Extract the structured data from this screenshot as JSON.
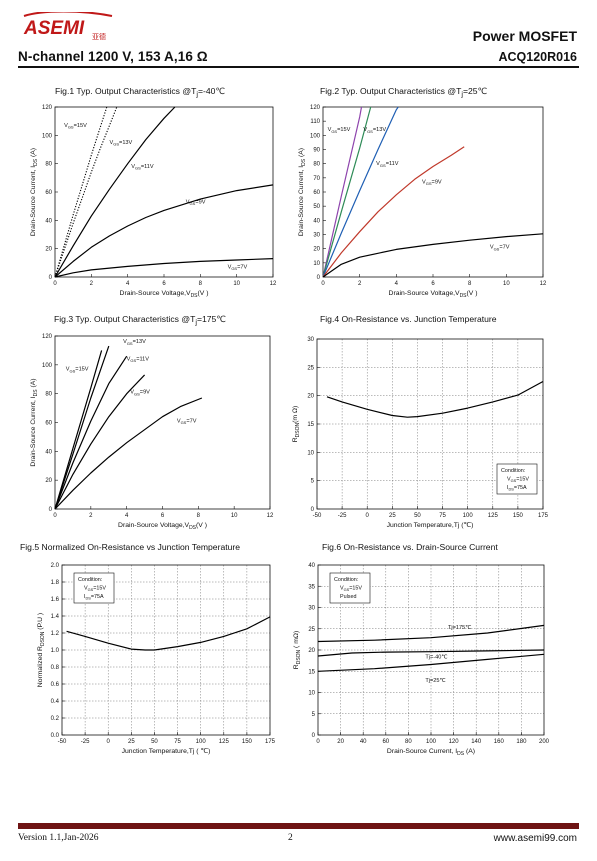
{
  "header": {
    "logo_text": "ASEMI",
    "logo_subtext": "亚德",
    "doc_type": "Power MOSFET",
    "part_number": "ACQ120R016",
    "spec_line": "N-channel  1200 V, 153 A,16 Ω"
  },
  "footer": {
    "version": "Version 1.1,Jan-2026",
    "page": "2",
    "website": "www.asemi99.com"
  },
  "figures": [
    {
      "title_html": "Fig.1 Typ. Output Characteristics @T<sub>j</sub>=-40℃"
    },
    {
      "title_html": "Fig.2 Typ. Output Characteristics @T<sub>j</sub>=25℃"
    },
    {
      "title_html": "Fig.3 Typ. Output Characteristics @T<sub>j</sub>=175℃"
    },
    {
      "title_html": "Fig.4 On-Resistance vs. Junction Temperature"
    },
    {
      "title_html": "Fig.5 Normalized On-Resistance vs Junction Temperature"
    },
    {
      "title_html": "Fig.6 On-Resistance vs. Drain-Source Current"
    }
  ],
  "chart_data": [
    {
      "type": "line",
      "title": "Fig.1 Typ. Output Characteristics @Tj=-40℃",
      "xlabel": "Drain-Source Voltage,V_DS(V )",
      "ylabel": "Drain-Source Current, I_DS (A)",
      "xlim": [
        0,
        12
      ],
      "ylim": [
        0,
        120
      ],
      "xticks": [
        0,
        2,
        4,
        6,
        8,
        10,
        12
      ],
      "yticks": [
        0,
        20,
        40,
        60,
        80,
        100,
        120
      ],
      "grid": false,
      "series": [
        {
          "name": "V_GS=15V",
          "style": "dotted",
          "color": "#000000",
          "points": [
            [
              0,
              0
            ],
            [
              0.5,
              22
            ],
            [
              1,
              44
            ],
            [
              1.5,
              65
            ],
            [
              2,
              86
            ],
            [
              2.5,
              106
            ],
            [
              2.85,
              120
            ]
          ]
        },
        {
          "name": "V_GS=13V",
          "style": "dotted",
          "color": "#000000",
          "points": [
            [
              0,
              0
            ],
            [
              0.5,
              19
            ],
            [
              1,
              38
            ],
            [
              1.5,
              56
            ],
            [
              2,
              74
            ],
            [
              2.5,
              91
            ],
            [
              3,
              107
            ],
            [
              3.4,
              120
            ]
          ]
        },
        {
          "name": "V_GS=11V",
          "style": "solid",
          "color": "#000000",
          "points": [
            [
              0,
              0
            ],
            [
              1,
              22
            ],
            [
              2,
              43
            ],
            [
              3,
              62
            ],
            [
              4,
              80
            ],
            [
              5,
              97
            ],
            [
              6,
              112
            ],
            [
              6.6,
              120
            ]
          ]
        },
        {
          "name": "V_GS=9V",
          "style": "solid",
          "color": "#000000",
          "points": [
            [
              0,
              0
            ],
            [
              1,
              11
            ],
            [
              2,
              21
            ],
            [
              3,
              29
            ],
            [
              4,
              36
            ],
            [
              5,
              42
            ],
            [
              6,
              47
            ],
            [
              8,
              55
            ],
            [
              10,
              61
            ],
            [
              12,
              65
            ]
          ]
        },
        {
          "name": "V_GS=7V",
          "style": "solid",
          "color": "#000000",
          "points": [
            [
              0,
              0
            ],
            [
              1,
              3
            ],
            [
              2,
              5
            ],
            [
              4,
              7.5
            ],
            [
              6,
              9.5
            ],
            [
              8,
              11
            ],
            [
              10,
              12
            ],
            [
              12,
              13
            ]
          ]
        }
      ],
      "labels": [
        {
          "text": "V_GS=15V",
          "x": 0.5,
          "y": 106
        },
        {
          "text": "V_GS=13V",
          "x": 3.0,
          "y": 94
        },
        {
          "text": "V_GS=11V",
          "x": 4.2,
          "y": 77
        },
        {
          "text": "V_GS=9V",
          "x": 7.2,
          "y": 52
        },
        {
          "text": "V_GS=7V",
          "x": 9.5,
          "y": 6
        }
      ]
    },
    {
      "type": "line",
      "title": "Fig.2 Typ. Output Characteristics @Tj=25℃",
      "xlabel": "Drain-Source Voltage,V_DS(V )",
      "ylabel": "Drain-Source Current, I_DS (A)",
      "xlim": [
        0,
        12
      ],
      "ylim": [
        0,
        120
      ],
      "xticks": [
        0,
        2,
        4,
        6,
        8,
        10,
        12
      ],
      "yticks": [
        0,
        10,
        20,
        30,
        40,
        50,
        60,
        70,
        80,
        90,
        100,
        110,
        120
      ],
      "grid": false,
      "series": [
        {
          "name": "V_GS=15V",
          "style": "solid",
          "color": "#8e44ad",
          "points": [
            [
              0,
              0
            ],
            [
              1,
              57
            ],
            [
              2,
              113
            ],
            [
              2.1,
              120
            ]
          ]
        },
        {
          "name": "V_GS=13V",
          "style": "solid",
          "color": "#2e8b57",
          "points": [
            [
              0,
              0
            ],
            [
              1,
              46
            ],
            [
              2,
              91
            ],
            [
              2.6,
              120
            ]
          ]
        },
        {
          "name": "V_GS=11V",
          "style": "solid",
          "color": "#1f5fb4",
          "points": [
            [
              0,
              0
            ],
            [
              1,
              31
            ],
            [
              2,
              61
            ],
            [
              3,
              90
            ],
            [
              4,
              118
            ],
            [
              4.1,
              120
            ]
          ]
        },
        {
          "name": "V_GS=9V",
          "style": "solid",
          "color": "#c0392b",
          "points": [
            [
              0,
              0
            ],
            [
              1,
              17
            ],
            [
              2,
              32
            ],
            [
              3,
              46
            ],
            [
              4,
              58
            ],
            [
              5,
              69
            ],
            [
              6,
              78
            ],
            [
              7,
              86
            ],
            [
              7.7,
              92
            ]
          ]
        },
        {
          "name": "V_GS=7V",
          "style": "solid",
          "color": "#000000",
          "points": [
            [
              0,
              0
            ],
            [
              1,
              9
            ],
            [
              2,
              14
            ],
            [
              4,
              19.5
            ],
            [
              6,
              23
            ],
            [
              8,
              26
            ],
            [
              10,
              28.5
            ],
            [
              12,
              30.5
            ]
          ]
        }
      ],
      "labels": [
        {
          "text": "V_GS=15V",
          "x": 0.25,
          "y": 103
        },
        {
          "text": "V_GS=13V",
          "x": 2.2,
          "y": 103
        },
        {
          "text": "V_GS=11V",
          "x": 2.9,
          "y": 79
        },
        {
          "text": "V_GS=9V",
          "x": 5.4,
          "y": 66
        },
        {
          "text": "V_GS=7V",
          "x": 9.1,
          "y": 20
        }
      ]
    },
    {
      "type": "line",
      "title": "Fig.3 Typ. Output Characteristics @Tj=175℃",
      "xlabel": "Drain-Source Voltage,V_DS(V )",
      "ylabel": "Drain-Source Current, I_DS (A)",
      "xlim": [
        0,
        12
      ],
      "ylim": [
        0,
        120
      ],
      "xticks": [
        0,
        2,
        4,
        6,
        8,
        10,
        12
      ],
      "yticks": [
        0,
        20,
        40,
        60,
        80,
        100,
        120
      ],
      "grid": false,
      "series": [
        {
          "name": "V_GS=15V",
          "style": "solid",
          "color": "#000000",
          "points": [
            [
              0,
              0
            ],
            [
              1,
              42
            ],
            [
              2,
              84
            ],
            [
              2.6,
              110
            ]
          ]
        },
        {
          "name": "V_GS=13V",
          "style": "solid",
          "color": "#000000",
          "points": [
            [
              0,
              0
            ],
            [
              1,
              38
            ],
            [
              2,
              77
            ],
            [
              3,
              113
            ]
          ]
        },
        {
          "name": "V_GS=11V",
          "style": "solid",
          "color": "#000000",
          "points": [
            [
              0,
              0
            ],
            [
              1,
              32
            ],
            [
              2,
              61
            ],
            [
              3,
              87
            ],
            [
              4,
              106
            ]
          ]
        },
        {
          "name": "V_GS=9V",
          "style": "solid",
          "color": "#000000",
          "points": [
            [
              0,
              0
            ],
            [
              1,
              24
            ],
            [
              2,
              45
            ],
            [
              3,
              64
            ],
            [
              4,
              80
            ],
            [
              5,
              93
            ]
          ]
        },
        {
          "name": "V_GS=7V",
          "style": "solid",
          "color": "#000000",
          "points": [
            [
              0,
              0
            ],
            [
              1,
              13
            ],
            [
              2,
              25
            ],
            [
              3,
              36
            ],
            [
              4,
              46
            ],
            [
              5,
              55
            ],
            [
              6,
              64
            ],
            [
              7,
              71
            ],
            [
              8.2,
              77
            ]
          ]
        }
      ],
      "labels": [
        {
          "text": "V_GS=13V",
          "x": 3.8,
          "y": 115
        },
        {
          "text": "V_GS=11V",
          "x": 4.0,
          "y": 103
        },
        {
          "text": "V_GS=15V",
          "x": 0.6,
          "y": 96
        },
        {
          "text": "V_GS=9V",
          "x": 4.2,
          "y": 80
        },
        {
          "text": "V_GS=7V",
          "x": 6.8,
          "y": 60
        }
      ]
    },
    {
      "type": "line",
      "title": "Fig.4 On-Resistance vs. Junction Temperature",
      "xlabel": "Junction Temperature,Tj (℃)",
      "ylabel": "R_DSON(m Ω)",
      "xlim": [
        -50,
        175
      ],
      "ylim": [
        0,
        30
      ],
      "xticks": [
        -50,
        -25,
        0,
        25,
        50,
        75,
        100,
        125,
        150,
        175
      ],
      "yticks": [
        0,
        5,
        10,
        15,
        20,
        25,
        30
      ],
      "grid": true,
      "series": [
        {
          "name": "",
          "style": "solid",
          "color": "#000000",
          "points": [
            [
              -40,
              19.8
            ],
            [
              -25,
              18.9
            ],
            [
              0,
              17.6
            ],
            [
              25,
              16.5
            ],
            [
              40,
              16.2
            ],
            [
              50,
              16.3
            ],
            [
              75,
              16.9
            ],
            [
              100,
              17.8
            ],
            [
              125,
              18.9
            ],
            [
              150,
              20.1
            ],
            [
              175,
              22.5
            ]
          ]
        }
      ],
      "condition": [
        "Condition:",
        "V_GS=15V",
        "I_DS=75A"
      ]
    },
    {
      "type": "line",
      "title": "Fig.5 Normalized On-Resistance vs Junction Temperature",
      "xlabel": "Junction Temperature,Tj ( ℃)",
      "ylabel": "Normalized R_DSON (P.U )",
      "xlim": [
        -50,
        175
      ],
      "ylim": [
        0.0,
        2.0
      ],
      "xticks": [
        -50,
        -25,
        0,
        25,
        50,
        75,
        100,
        125,
        150,
        175
      ],
      "yticks": [
        0.0,
        0.2,
        0.4,
        0.6,
        0.8,
        1.0,
        1.2,
        1.4,
        1.6,
        1.8,
        2.0
      ],
      "grid": true,
      "series": [
        {
          "name": "",
          "style": "solid",
          "color": "#000000",
          "points": [
            [
              -45,
              1.22
            ],
            [
              -25,
              1.16
            ],
            [
              0,
              1.08
            ],
            [
              25,
              1.01
            ],
            [
              40,
              1.0
            ],
            [
              50,
              1.0
            ],
            [
              75,
              1.04
            ],
            [
              100,
              1.09
            ],
            [
              125,
              1.16
            ],
            [
              150,
              1.25
            ],
            [
              175,
              1.39
            ]
          ]
        }
      ],
      "condition": [
        "Condition:",
        "V_GS=15V",
        "I_DS=75A"
      ]
    },
    {
      "type": "line",
      "title": "Fig.6 On-Resistance vs. Drain-Source Current",
      "xlabel": "Drain-Source Current, I_DS (A)",
      "ylabel": "R_DSON ( mΩ)",
      "xlim": [
        0,
        200
      ],
      "ylim": [
        0,
        40
      ],
      "xticks": [
        0,
        20,
        40,
        60,
        80,
        100,
        120,
        140,
        160,
        180,
        200
      ],
      "yticks": [
        0,
        5,
        10,
        15,
        20,
        25,
        30,
        35,
        40
      ],
      "grid": true,
      "series": [
        {
          "name": "Tj=175℃",
          "style": "solid",
          "color": "#000000",
          "points": [
            [
              0,
              22
            ],
            [
              50,
              22.3
            ],
            [
              100,
              22.9
            ],
            [
              150,
              24.0
            ],
            [
              200,
              25.8
            ]
          ]
        },
        {
          "name": "Tj=-40℃",
          "style": "solid",
          "color": "#000000",
          "points": [
            [
              0,
              18.6
            ],
            [
              30,
              19.3
            ],
            [
              60,
              19.5
            ],
            [
              100,
              19.6
            ],
            [
              150,
              19.8
            ],
            [
              200,
              20.0
            ]
          ]
        },
        {
          "name": "Tj=25℃",
          "style": "solid",
          "color": "#000000",
          "points": [
            [
              0,
              15
            ],
            [
              50,
              15.6
            ],
            [
              100,
              16.6
            ],
            [
              150,
              17.8
            ],
            [
              200,
              19.0
            ]
          ]
        }
      ],
      "labels": [
        {
          "text": "Tj=175℃",
          "x": 115,
          "y": 25
        },
        {
          "text": "Tj=-40℃",
          "x": 95,
          "y": 18
        },
        {
          "text": "Tj=25℃",
          "x": 95,
          "y": 12.5
        }
      ],
      "condition": [
        "Condition:",
        "V_GS=15V",
        "Pulsed"
      ]
    }
  ]
}
